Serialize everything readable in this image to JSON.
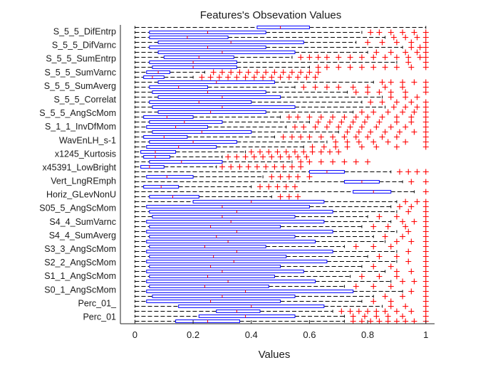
{
  "chart_data": {
    "type": "boxplot",
    "orientation": "horizontal",
    "title": "Features's Obsevation Values",
    "xlabel": "Values",
    "ylabel": "",
    "xlim": [
      -0.05,
      1.03
    ],
    "xticks": [
      0,
      0.2,
      0.4,
      0.6,
      0.8,
      1
    ],
    "xtick_labels": [
      "0",
      "0.2",
      "0.4",
      "0.6",
      "0.8",
      "1"
    ],
    "box_color": "#0000ff",
    "whisker_color": "#000000",
    "outlier_color": "#ff0000",
    "median_color": "#ff0000",
    "visible_feature_labels": [
      "S_5_5_DifEntrp",
      "S_5_5_DifVarnc",
      "S_5_5_SumEntrp",
      "S_5_5_SumVarnc",
      "S_5_5_SumAverg",
      "S_5_5_Correlat",
      "S_5_5_AngScMom",
      "S_1_1_InvDfMom",
      "WavEnLH_s-1",
      "x1245_Kurtosis",
      "x45391_LowBright",
      "Vert_LngREmph",
      "Horiz_GLevNonU",
      "S05_5_AngScMom",
      "S4_4_SumVarnc",
      "S4_4_SumAverg",
      "S3_3_AngScMom",
      "S2_2_AngScMom",
      "S1_1_AngScMom",
      "S0_1_AngScMom",
      "Perc_01_",
      "Perc_01"
    ],
    "n_features": 60,
    "boxes": [
      {
        "q1": 0.42,
        "q3": 0.6,
        "med": 0.5,
        "wlo": 0.0,
        "whi": 1.0,
        "outliers": []
      },
      {
        "q1": 0.05,
        "q3": 0.45,
        "med": 0.25,
        "wlo": 0.0,
        "whi": 0.78,
        "outliers": [
          0.81,
          0.84,
          0.88,
          0.92,
          0.96,
          1.0
        ]
      },
      {
        "q1": 0.05,
        "q3": 0.32,
        "med": 0.18,
        "wlo": 0.0,
        "whi": 0.86,
        "outliers": [
          0.89,
          0.93,
          0.97,
          1.0
        ]
      },
      {
        "q1": 0.08,
        "q3": 0.58,
        "med": 0.33,
        "wlo": 0.0,
        "whi": 0.76,
        "outliers": [
          0.8,
          0.85,
          0.9,
          0.95,
          1.0
        ]
      },
      {
        "q1": 0.05,
        "q3": 0.45,
        "med": 0.25,
        "wlo": 0.0,
        "whi": 0.92,
        "outliers": [
          0.95,
          0.98,
          1.0
        ]
      },
      {
        "q1": 0.08,
        "q3": 0.55,
        "med": 0.3,
        "wlo": 0.0,
        "whi": 0.8,
        "outliers": [
          0.83,
          0.88,
          0.93,
          0.97,
          1.0
        ]
      },
      {
        "q1": 0.1,
        "q3": 0.34,
        "med": 0.22,
        "wlo": 0.0,
        "whi": 0.54,
        "outliers": [
          0.57,
          0.6,
          0.63,
          0.66,
          0.7,
          0.74,
          0.78,
          0.82,
          0.86,
          0.9,
          0.94,
          0.98,
          1.0
        ]
      },
      {
        "q1": 0.05,
        "q3": 0.35,
        "med": 0.2,
        "wlo": 0.0,
        "whi": 0.9,
        "outliers": [
          0.94,
          1.0
        ]
      },
      {
        "q1": 0.06,
        "q3": 0.35,
        "med": 0.2,
        "wlo": 0.0,
        "whi": 0.6,
        "outliers": [
          0.63,
          0.66,
          0.7,
          0.74,
          0.78,
          0.82,
          0.86,
          0.9,
          0.95,
          1.0
        ]
      },
      {
        "q1": 0.04,
        "q3": 0.12,
        "med": 0.08,
        "wlo": 0.0,
        "whi": 0.24,
        "outliers": [
          0.27,
          0.3,
          0.33,
          0.36,
          0.39,
          0.42,
          0.45,
          0.48,
          0.51,
          0.54,
          0.57,
          0.6,
          0.63
        ]
      },
      {
        "q1": 0.03,
        "q3": 0.1,
        "med": 0.06,
        "wlo": 0.0,
        "whi": 0.2,
        "outliers": [
          0.23,
          0.26,
          0.29,
          0.32,
          0.35,
          0.38,
          0.41,
          0.44,
          0.47,
          0.5,
          0.53,
          0.56,
          0.59,
          0.62
        ]
      },
      {
        "q1": 0.08,
        "q3": 0.48,
        "med": 0.28,
        "wlo": 0.0,
        "whi": 0.82,
        "outliers": [
          0.85,
          0.88,
          0.92,
          0.96,
          1.0
        ]
      },
      {
        "q1": 0.05,
        "q3": 0.25,
        "med": 0.15,
        "wlo": 0.0,
        "whi": 0.55,
        "outliers": [
          0.58,
          0.62,
          0.66,
          0.7,
          0.75,
          0.8,
          0.86,
          0.92,
          1.0
        ]
      },
      {
        "q1": 0.06,
        "q3": 0.45,
        "med": 0.25,
        "wlo": 0.0,
        "whi": 0.73,
        "outliers": [
          0.76,
          0.8,
          0.84,
          0.88,
          0.93,
          1.0
        ]
      },
      {
        "q1": 0.08,
        "q3": 0.5,
        "med": 0.3,
        "wlo": 0.0,
        "whi": 0.85,
        "outliers": [
          0.88,
          0.93,
          0.97
        ]
      },
      {
        "q1": 0.05,
        "q3": 0.4,
        "med": 0.22,
        "wlo": 0.0,
        "whi": 0.78,
        "outliers": [
          0.81,
          0.85,
          0.9,
          0.95,
          1.0
        ]
      },
      {
        "q1": 0.06,
        "q3": 0.55,
        "med": 0.3,
        "wlo": 0.0,
        "whi": 0.86,
        "outliers": [
          0.89,
          0.93,
          0.97,
          1.0
        ]
      },
      {
        "q1": 0.08,
        "q3": 0.45,
        "med": 0.26,
        "wlo": 0.0,
        "whi": 0.75,
        "outliers": [
          0.78,
          0.82,
          0.87,
          0.92,
          0.96,
          1.0
        ]
      },
      {
        "q1": 0.03,
        "q3": 0.2,
        "med": 0.11,
        "wlo": 0.0,
        "whi": 0.5,
        "outliers": [
          0.53,
          0.56,
          0.6,
          0.64,
          0.68,
          0.72,
          0.76,
          0.8,
          0.85,
          0.9,
          0.95,
          1.0
        ]
      },
      {
        "q1": 0.05,
        "q3": 0.3,
        "med": 0.17,
        "wlo": 0.0,
        "whi": 0.6,
        "outliers": [
          0.63,
          0.67,
          0.71,
          0.75,
          0.79,
          0.84,
          0.9,
          0.95,
          1.0
        ]
      },
      {
        "q1": 0.04,
        "q3": 0.25,
        "med": 0.14,
        "wlo": 0.0,
        "whi": 0.52,
        "outliers": [
          0.55,
          0.58,
          0.62,
          0.66,
          0.7,
          0.74,
          0.78,
          0.83,
          0.88,
          0.93,
          1.0
        ]
      },
      {
        "q1": 0.06,
        "q3": 0.4,
        "med": 0.23,
        "wlo": 0.0,
        "whi": 0.7,
        "outliers": [
          0.73,
          0.77,
          0.81,
          0.86,
          0.91,
          0.96,
          1.0
        ]
      },
      {
        "q1": 0.03,
        "q3": 0.18,
        "med": 0.1,
        "wlo": 0.0,
        "whi": 0.48,
        "outliers": [
          0.51,
          0.54,
          0.57,
          0.6,
          0.64,
          0.68,
          0.72,
          0.76,
          0.8,
          0.85,
          0.9,
          1.0
        ]
      },
      {
        "q1": 0.05,
        "q3": 0.35,
        "med": 0.2,
        "wlo": 0.0,
        "whi": 0.66,
        "outliers": [
          0.69,
          0.73,
          0.77,
          0.82,
          0.87,
          0.93,
          1.0
        ]
      },
      {
        "q1": 0.04,
        "q3": 0.28,
        "med": 0.15,
        "wlo": 0.0,
        "whi": 0.58,
        "outliers": [
          0.61,
          0.65,
          0.69,
          0.73,
          0.78,
          0.83,
          0.9,
          1.0
        ]
      },
      {
        "q1": 0.02,
        "q3": 0.14,
        "med": 0.07,
        "wlo": 0.0,
        "whi": 0.38,
        "outliers": [
          0.4,
          0.43,
          0.46,
          0.49,
          0.52,
          0.55,
          0.58,
          0.61,
          0.64,
          0.67,
          0.7
        ]
      },
      {
        "q1": 0.03,
        "q3": 0.12,
        "med": 0.07,
        "wlo": 0.0,
        "whi": 0.3,
        "outliers": [
          0.32,
          0.35,
          0.38,
          0.41,
          0.44,
          0.47,
          0.5,
          0.53,
          0.56,
          0.59
        ]
      },
      {
        "q1": 0.05,
        "q3": 0.3,
        "med": 0.16,
        "wlo": 0.0,
        "whi": 0.54,
        "outliers": [
          0.57,
          0.6,
          0.64,
          0.68,
          0.72,
          0.76,
          0.8
        ]
      },
      {
        "q1": 0.02,
        "q3": 0.1,
        "med": 0.05,
        "wlo": 0.0,
        "whi": 0.28,
        "outliers": [
          0.3,
          0.33,
          0.36,
          0.39,
          0.42,
          0.45,
          0.48,
          0.51,
          0.54,
          0.57
        ]
      },
      {
        "q1": 0.6,
        "q3": 0.72,
        "med": 0.66,
        "wlo": 0.0,
        "whi": 0.88,
        "outliers": [
          0.91,
          0.94,
          0.97,
          1.0
        ]
      },
      {
        "q1": 0.04,
        "q3": 0.2,
        "med": 0.11,
        "wlo": 0.0,
        "whi": 0.44,
        "outliers": [
          0.47,
          0.5,
          0.53,
          0.56,
          0.6
        ]
      },
      {
        "q1": 0.72,
        "q3": 0.84,
        "med": 0.78,
        "wlo": 0.0,
        "whi": 0.92,
        "outliers": [
          0.95,
          1.0
        ]
      },
      {
        "q1": 0.03,
        "q3": 0.15,
        "med": 0.09,
        "wlo": 0.0,
        "whi": 0.4,
        "outliers": [
          0.43,
          0.46,
          0.49,
          0.52,
          0.55
        ]
      },
      {
        "q1": 0.75,
        "q3": 0.88,
        "med": 0.82,
        "wlo": 0.0,
        "whi": 0.96,
        "outliers": [
          1.0
        ]
      },
      {
        "q1": 0.05,
        "q3": 0.22,
        "med": 0.13,
        "wlo": 0.0,
        "whi": 0.47,
        "outliers": [
          0.5,
          0.53,
          0.56
        ]
      },
      {
        "q1": 0.2,
        "q3": 0.65,
        "med": 0.4,
        "wlo": 0.0,
        "whi": 0.9,
        "outliers": [
          0.93,
          0.97,
          1.0
        ]
      },
      {
        "q1": 0.04,
        "q3": 0.6,
        "med": 0.3,
        "wlo": 0.0,
        "whi": 0.88,
        "outliers": [
          0.91,
          0.95,
          1.0
        ]
      },
      {
        "q1": 0.05,
        "q3": 0.68,
        "med": 0.35,
        "wlo": 0.0,
        "whi": 0.9,
        "outliers": [
          0.94,
          1.0
        ]
      },
      {
        "q1": 0.06,
        "q3": 0.55,
        "med": 0.3,
        "wlo": 0.0,
        "whi": 0.8,
        "outliers": [
          0.84,
          0.9,
          1.0
        ]
      },
      {
        "q1": 0.04,
        "q3": 0.65,
        "med": 0.33,
        "wlo": 0.0,
        "whi": 0.88,
        "outliers": [
          0.92,
          0.96,
          1.0
        ]
      },
      {
        "q1": 0.05,
        "q3": 0.5,
        "med": 0.26,
        "wlo": 0.0,
        "whi": 0.78,
        "outliers": [
          0.82,
          0.87,
          0.93,
          1.0
        ]
      },
      {
        "q1": 0.04,
        "q3": 0.68,
        "med": 0.35,
        "wlo": 0.0,
        "whi": 0.9,
        "outliers": [
          0.94,
          1.0
        ]
      },
      {
        "q1": 0.05,
        "q3": 0.55,
        "med": 0.28,
        "wlo": 0.0,
        "whi": 0.82,
        "outliers": [
          0.86,
          0.92,
          1.0
        ]
      },
      {
        "q1": 0.04,
        "q3": 0.62,
        "med": 0.32,
        "wlo": 0.0,
        "whi": 0.86,
        "outliers": [
          0.9,
          0.95,
          1.0
        ]
      },
      {
        "q1": 0.05,
        "q3": 0.45,
        "med": 0.24,
        "wlo": 0.0,
        "whi": 0.72,
        "outliers": [
          0.76,
          0.82,
          0.88,
          1.0
        ]
      },
      {
        "q1": 0.04,
        "q3": 0.68,
        "med": 0.35,
        "wlo": 0.0,
        "whi": 0.9,
        "outliers": [
          0.94,
          1.0
        ]
      },
      {
        "q1": 0.05,
        "q3": 0.52,
        "med": 0.27,
        "wlo": 0.0,
        "whi": 0.8,
        "outliers": [
          0.84,
          0.9,
          1.0
        ]
      },
      {
        "q1": 0.04,
        "q3": 0.66,
        "med": 0.34,
        "wlo": 0.0,
        "whi": 0.9,
        "outliers": [
          0.94,
          1.0
        ]
      },
      {
        "q1": 0.05,
        "q3": 0.5,
        "med": 0.26,
        "wlo": 0.0,
        "whi": 0.78,
        "outliers": [
          0.82,
          0.88,
          1.0
        ]
      },
      {
        "q1": 0.04,
        "q3": 0.58,
        "med": 0.3,
        "wlo": 0.0,
        "whi": 0.86,
        "outliers": [
          0.9,
          0.95,
          1.0
        ]
      },
      {
        "q1": 0.05,
        "q3": 0.48,
        "med": 0.25,
        "wlo": 0.0,
        "whi": 0.74,
        "outliers": [
          0.78,
          0.84,
          0.9,
          1.0
        ]
      },
      {
        "q1": 0.04,
        "q3": 0.62,
        "med": 0.32,
        "wlo": 0.0,
        "whi": 0.88,
        "outliers": [
          0.92,
          0.96,
          1.0
        ]
      },
      {
        "q1": 0.05,
        "q3": 0.46,
        "med": 0.24,
        "wlo": 0.0,
        "whi": 0.72,
        "outliers": [
          0.76,
          0.82,
          0.88,
          1.0
        ]
      },
      {
        "q1": 0.04,
        "q3": 0.75,
        "med": 0.38,
        "wlo": 0.0,
        "whi": 0.92,
        "outliers": [
          0.95,
          1.0
        ]
      },
      {
        "q1": 0.06,
        "q3": 0.55,
        "med": 0.3,
        "wlo": 0.0,
        "whi": 0.82,
        "outliers": [
          0.86,
          0.92,
          1.0
        ]
      },
      {
        "q1": 0.04,
        "q3": 0.5,
        "med": 0.26,
        "wlo": 0.0,
        "whi": 0.78,
        "outliers": [
          0.82,
          0.88,
          1.0
        ]
      },
      {
        "q1": 0.15,
        "q3": 0.65,
        "med": 0.4,
        "wlo": 0.0,
        "whi": 0.85,
        "outliers": [
          0.88,
          0.93,
          1.0
        ]
      },
      {
        "q1": 0.28,
        "q3": 0.43,
        "med": 0.35,
        "wlo": 0.0,
        "whi": 0.68,
        "outliers": [
          0.71,
          0.74,
          0.77,
          0.8,
          0.83,
          0.86,
          0.9,
          0.95,
          1.0
        ]
      },
      {
        "q1": 0.22,
        "q3": 0.55,
        "med": 0.38,
        "wlo": 0.0,
        "whi": 0.72,
        "outliers": [
          0.75,
          0.79,
          0.83,
          0.87,
          0.92,
          1.0
        ]
      },
      {
        "q1": 0.14,
        "q3": 0.36,
        "med": 0.25,
        "wlo": 0.0,
        "whi": 0.72,
        "outliers": [
          0.75,
          0.78,
          0.81,
          0.84,
          0.87,
          0.9,
          0.93,
          0.96,
          1.0
        ]
      }
    ]
  }
}
